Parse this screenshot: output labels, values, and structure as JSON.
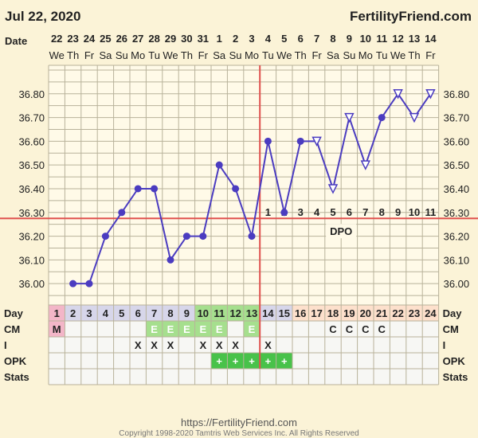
{
  "header": {
    "date": "Jul 22, 2020",
    "brand": "FertilityFriend.com"
  },
  "footer": {
    "url": "https://FertilityFriend.com",
    "copyright": "Copyright 1998-2020 Tamtris Web Services Inc. All Rights Reserved"
  },
  "colors": {
    "temp_line": "#4b3cc0",
    "coverline": "#e0524f",
    "ovulation_line": "#e0524f",
    "grid": "#b8b29a",
    "fertile_cell": "#a6df8e",
    "menses_cell": "#f3b6c8",
    "luteal_cell": "#fde0cc",
    "grid_bg": "#fffae8"
  },
  "chart_data": {
    "type": "line",
    "title": "",
    "row_labels": {
      "date": "Date",
      "day": "Day",
      "cm": "CM",
      "i": "I",
      "opk": "OPK",
      "stats": "Stats"
    },
    "dates": [
      "22",
      "23",
      "24",
      "25",
      "26",
      "27",
      "28",
      "29",
      "30",
      "31",
      "1",
      "2",
      "3",
      "4",
      "5",
      "6",
      "7",
      "8",
      "9",
      "10",
      "11",
      "12",
      "13",
      "14"
    ],
    "weekdays": [
      "We",
      "Th",
      "Fr",
      "Sa",
      "Su",
      "Mo",
      "Tu",
      "We",
      "Th",
      "Fr",
      "Sa",
      "Su",
      "Mo",
      "Tu",
      "We",
      "Th",
      "Fr",
      "Sa",
      "Su",
      "Mo",
      "Tu",
      "We",
      "Th",
      "Fr"
    ],
    "cycle_days": [
      1,
      2,
      3,
      4,
      5,
      6,
      7,
      8,
      9,
      10,
      11,
      12,
      13,
      14,
      15,
      16,
      17,
      18,
      19,
      20,
      21,
      22,
      23,
      24
    ],
    "temps": [
      null,
      36.0,
      36.0,
      36.2,
      36.3,
      36.4,
      36.4,
      36.1,
      36.2,
      36.2,
      36.5,
      36.4,
      36.2,
      36.6,
      36.3,
      36.6,
      36.6,
      36.4,
      36.7,
      36.5,
      36.7,
      36.8,
      36.7,
      36.8
    ],
    "open_markers": [
      17,
      18,
      19,
      20,
      22,
      23,
      24
    ],
    "y_ticks": [
      "36.00",
      "36.10",
      "36.20",
      "36.30",
      "36.40",
      "36.50",
      "36.60",
      "36.70",
      "36.80"
    ],
    "ylim": [
      35.91,
      36.92
    ],
    "coverline": 36.275,
    "ovulation_day": 13,
    "dpo_label": "DPO",
    "dpo_values": [
      "1",
      "2",
      "3",
      "4",
      "5",
      "6",
      "7",
      "8",
      "9",
      "10",
      "11"
    ],
    "dpo_start_day": 14,
    "cm": [
      "M",
      "",
      "",
      "",
      "",
      "",
      "E",
      "E",
      "E",
      "E",
      "E",
      "",
      "E",
      "",
      "",
      "",
      "",
      "C",
      "C",
      "C",
      "C",
      "",
      "",
      ""
    ],
    "intercourse": [
      "",
      "",
      "",
      "",
      "",
      "X",
      "X",
      "X",
      "",
      "X",
      "X",
      "X",
      "",
      "X",
      "",
      "",
      "",
      "",
      "",
      "",
      "",
      "",
      "",
      ""
    ],
    "opk": [
      "",
      "",
      "",
      "",
      "",
      "",
      "",
      "",
      "",
      "",
      "+",
      "+",
      "+",
      "+",
      "+",
      "",
      "",
      "",
      "",
      "",
      "",
      "",
      "",
      ""
    ],
    "fertile_days": [
      10,
      11,
      12,
      13
    ],
    "luteal_highlight_days": [
      16,
      17,
      18,
      19,
      20,
      21,
      22,
      23,
      24
    ],
    "menses_days": [
      1
    ]
  }
}
